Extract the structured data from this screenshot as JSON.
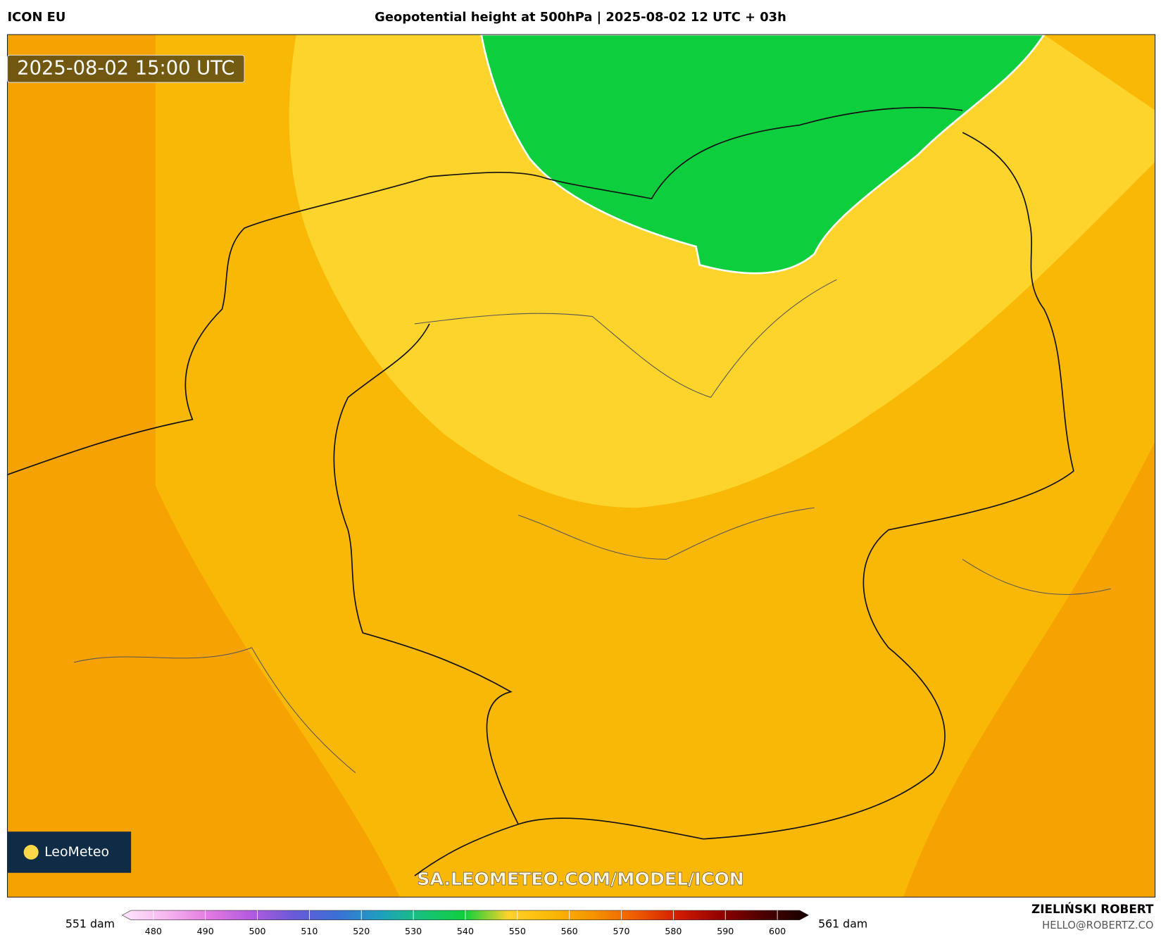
{
  "header": {
    "model": "ICON EU",
    "title": "Geopotential height at 500hPa | 2025-08-02 12 UTC + 03h"
  },
  "map": {
    "valid_time": "2025-08-02 15:00 UTC",
    "watermark": "SA.LEOMETEO.COM/MODEL/ICON",
    "brand": "LeoMeteo"
  },
  "colorbar": {
    "min_label": "551 dam",
    "max_label": "561 dam",
    "lim": [
      474,
      606
    ],
    "ticks": [
      480,
      490,
      500,
      510,
      520,
      530,
      540,
      550,
      560,
      570,
      580,
      590,
      600
    ],
    "colors": [
      "#ffe6ff",
      "#f6b8f0",
      "#e27be0",
      "#b35ae0",
      "#6a5ad8",
      "#3b6fd6",
      "#1f9fc0",
      "#17c27a",
      "#0fcf3c",
      "#fdd22a",
      "#fbb806",
      "#f59200",
      "#ee5a00",
      "#d11a00",
      "#8e0000",
      "#4a0000",
      "#140000"
    ]
  },
  "footer": {
    "author": "ZIELIŃSKI ROBERT",
    "contact": "HELLO@ROBERTZ.CO"
  }
}
